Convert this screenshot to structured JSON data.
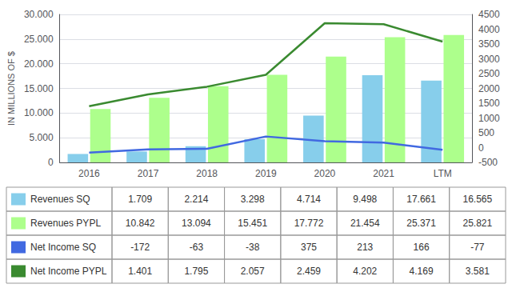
{
  "chart_data": {
    "type": "bar",
    "categories": [
      "2016",
      "2017",
      "2018",
      "2019",
      "2020",
      "2021",
      "LTM"
    ],
    "ylabel": "IN MILLIONS OF $",
    "ylim": [
      0,
      30000
    ],
    "yticks": [
      0,
      {
        "value": 5000,
        "label": "5.000"
      },
      {
        "value": 10000,
        "label": "10.000"
      },
      {
        "value": 15000,
        "label": "15.000"
      },
      {
        "value": 20000,
        "label": "20.000"
      },
      {
        "value": 25000,
        "label": "25.000"
      },
      {
        "value": 30000,
        "label": "30.000"
      }
    ],
    "y2lim": [
      -500,
      4500
    ],
    "y2ticks": [
      -500,
      0,
      500,
      1000,
      1500,
      2000,
      2500,
      3000,
      3500,
      4000,
      4500
    ],
    "grid": true,
    "series": [
      {
        "name": "Revenues SQ",
        "type": "bar",
        "color": "#87CEEB",
        "values": [
          1709,
          2214,
          3298,
          4714,
          9498,
          17661,
          16565
        ],
        "value_labels": [
          "1.709",
          "2.214",
          "3.298",
          "4.714",
          "9.498",
          "17.661",
          "16.565"
        ]
      },
      {
        "name": "Revenues PYPL",
        "type": "bar",
        "color": "#ADFF8C",
        "values": [
          10842,
          13094,
          15451,
          17772,
          21454,
          25371,
          25821
        ],
        "value_labels": [
          "10.842",
          "13.094",
          "15.451",
          "17.772",
          "21.454",
          "25.371",
          "25.821"
        ]
      },
      {
        "name": "Net Income SQ",
        "type": "line",
        "axis": "y2",
        "color": "#4169E1",
        "values": [
          -172,
          -63,
          -38,
          375,
          213,
          166,
          -77
        ],
        "value_labels": [
          "-172",
          "-63",
          "-38",
          "375",
          "213",
          "166",
          "-77"
        ]
      },
      {
        "name": "Net Income PYPL",
        "type": "line",
        "axis": "y2",
        "color": "#3A8A30",
        "values": [
          1401,
          1795,
          2057,
          2459,
          4202,
          4169,
          3581
        ],
        "value_labels": [
          "1.401",
          "1.795",
          "2.057",
          "2.459",
          "4.202",
          "4.169",
          "3.581"
        ]
      }
    ]
  }
}
